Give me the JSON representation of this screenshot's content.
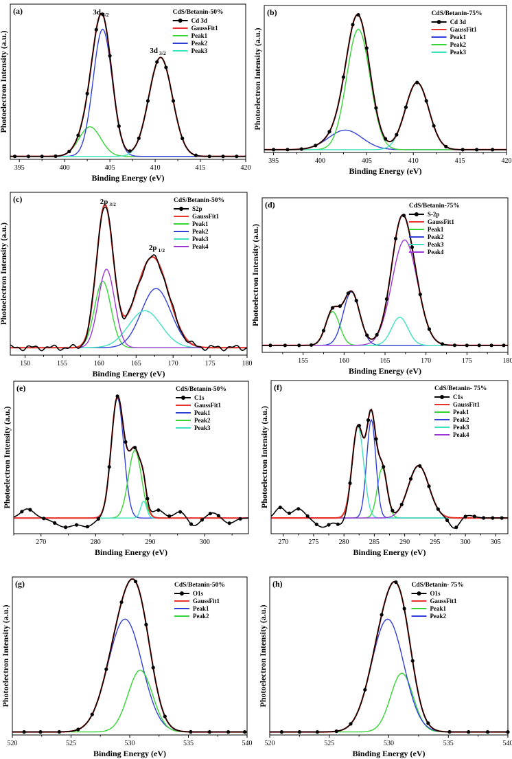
{
  "colors": {
    "data": "#000000",
    "fit": "#e8322b",
    "green": "#33d433",
    "blue": "#2f3fd6",
    "cyan": "#3fe0c0",
    "purple": "#9c35d6"
  },
  "chart_data": [
    {
      "type": "line",
      "panel": "(a)",
      "xlabel": "Binding Energy (eV)",
      "ylabel": "Photoelectron Intensity (a.u.)",
      "xlim": [
        394,
        420
      ],
      "ylim": [
        0,
        1.05
      ],
      "xticks": [
        395,
        400,
        405,
        410,
        415,
        420
      ],
      "legend_title": "CdS/Betanin-50%",
      "legend_position": "top-right",
      "legend_order": [
        "measured",
        "fit",
        "p1",
        "p2",
        "p3"
      ],
      "measured_name": "Cd 3d",
      "fit_name": "GaussFit1",
      "baseline": 0.02,
      "peaks": [
        {
          "key": "p1",
          "name": "Peak1",
          "color": "green",
          "center": 402.8,
          "amp": 0.2,
          "sigma": 1.2
        },
        {
          "key": "p2",
          "name": "Peak2",
          "color": "blue",
          "center": 404.2,
          "amp": 0.86,
          "sigma": 1.05
        },
        {
          "key": "p3",
          "name": "Peak3",
          "color": "cyan",
          "center": 410.6,
          "amp": 0.67,
          "sigma": 1.3
        }
      ],
      "markers": [
        394.5,
        396,
        397.5,
        399,
        400.5,
        401.5,
        402.5,
        403.5,
        404.2,
        405,
        406,
        407.2,
        408.2,
        409.2,
        410.2,
        411.2,
        412,
        413,
        414.5,
        416,
        417.5,
        419
      ],
      "annotations": [
        {
          "main": "3d",
          "sub": "5/2",
          "x": 404.0,
          "y": 0.98
        },
        {
          "main": "3d",
          "sub": "3/2",
          "x": 410.3,
          "y": 0.72
        }
      ]
    },
    {
      "type": "line",
      "panel": "(b)",
      "xlabel": "Binding Energy (eV)",
      "ylabel": "Photoelectron Intensity (a.u.)",
      "xlim": [
        394,
        420
      ],
      "ylim": [
        0,
        1.05
      ],
      "xticks": [
        395,
        400,
        405,
        410,
        415,
        420
      ],
      "legend_title": "CdS/Betanin-75%",
      "legend_position": "top-right",
      "legend_order": [
        "measured",
        "fit",
        "p1",
        "p2",
        "p3"
      ],
      "measured_name": "Cd 3d",
      "fit_name": "GaussFit1",
      "baseline": 0.02,
      "peaks": [
        {
          "key": "p1",
          "name": "Peak1",
          "color": "blue",
          "center": 402.7,
          "amp": 0.14,
          "sigma": 1.8
        },
        {
          "key": "p2",
          "name": "Peak2",
          "color": "green",
          "center": 404.1,
          "amp": 0.86,
          "sigma": 1.25
        },
        {
          "key": "p3",
          "name": "Peak3",
          "color": "cyan",
          "center": 410.4,
          "amp": 0.48,
          "sigma": 1.25
        }
      ],
      "markers": [
        395,
        396.5,
        398,
        399.5,
        401,
        402.5,
        403.5,
        404.1,
        405,
        406,
        407,
        408.2,
        409.2,
        410.4,
        411.4,
        412.2,
        413.5,
        415.3,
        416.8,
        418.5
      ],
      "annotations": []
    },
    {
      "type": "line",
      "panel": "(c)",
      "xlabel": "Binding Energy (eV)",
      "ylabel": "Photoelectron Intensity (a.u.)",
      "xlim": [
        148,
        180
      ],
      "ylim": [
        -0.05,
        1.05
      ],
      "xticks": [
        150,
        155,
        160,
        165,
        170,
        175,
        180
      ],
      "legend_title": "CdS/Betanin-50%",
      "legend_position": "top-right",
      "legend_order": [
        "measured",
        "fit",
        "p1",
        "p2",
        "p3",
        "p4"
      ],
      "measured_name": "S2p",
      "fit_name": "GaussFit1",
      "baseline": 0.0,
      "peaks": [
        {
          "key": "p1",
          "name": "Peak1",
          "color": "green",
          "center": 160.5,
          "amp": 0.45,
          "sigma": 1.1
        },
        {
          "key": "p2",
          "name": "Peak2",
          "color": "blue",
          "center": 167.7,
          "amp": 0.4,
          "sigma": 2.0
        },
        {
          "key": "p3",
          "name": "Peak3",
          "color": "cyan",
          "center": 166.2,
          "amp": 0.25,
          "sigma": 2.2
        },
        {
          "key": "p4",
          "name": "Peak4",
          "color": "purple",
          "center": 161.0,
          "amp": 0.53,
          "sigma": 1.1
        }
      ],
      "markers": [],
      "noise": 0.013,
      "annotations": [
        {
          "main": "2p",
          "sub": "3/2",
          "x": 161.2,
          "y": 0.97
        },
        {
          "main": "2p",
          "sub": "1/2",
          "x": 167.8,
          "y": 0.66
        }
      ]
    },
    {
      "type": "line",
      "panel": "(d)",
      "xlabel": "Binding Energy (eV)",
      "ylabel": "Photoelectron Intensity (a.u.)",
      "xlim": [
        150,
        180
      ],
      "ylim": [
        -0.05,
        1.05
      ],
      "xticks": [
        155,
        160,
        165,
        170,
        175,
        180
      ],
      "legend_title": "CdS/Betanin-75%",
      "legend_position": "top-left",
      "legend_order": [
        "measured",
        "fit",
        "p1",
        "p2",
        "p3",
        "p4"
      ],
      "measured_name": "S-2p",
      "fit_name": "GaussFit1",
      "baseline": 0.0,
      "peaks": [
        {
          "key": "p1",
          "name": "Peak1",
          "color": "green",
          "center": 158.6,
          "amp": 0.24,
          "sigma": 0.85
        },
        {
          "key": "p2",
          "name": "Peak2",
          "color": "blue",
          "center": 160.9,
          "amp": 0.38,
          "sigma": 1.0
        },
        {
          "key": "p3",
          "name": "Peak3",
          "color": "cyan",
          "center": 166.8,
          "amp": 0.2,
          "sigma": 1.0
        },
        {
          "key": "p4",
          "name": "Peak4",
          "color": "purple",
          "center": 167.4,
          "amp": 0.75,
          "sigma": 1.55
        }
      ],
      "markers": [
        151,
        152.8,
        154.5,
        156,
        157.5,
        158.6,
        159.5,
        160.5,
        161.5,
        162.8,
        164,
        165.2,
        166.3,
        167.3,
        168.3,
        169.3,
        170.4,
        172,
        173.5,
        175,
        176.5,
        178,
        179.5
      ],
      "annotations": []
    },
    {
      "type": "line",
      "panel": "(e)",
      "xlabel": "Binding Energy (eV)",
      "ylabel": "Photoelectron Intensity (a.u.)",
      "xlim": [
        265,
        308
      ],
      "ylim": [
        -0.12,
        1.05
      ],
      "xticks": [
        270,
        280,
        290,
        300
      ],
      "legend_title": "CdS/Betanin-50%",
      "legend_position": "top-right",
      "legend_order": [
        "measured",
        "fit",
        "p1",
        "p2",
        "p3"
      ],
      "measured_name": "C1s",
      "fit_name": "GaussFit1",
      "baseline": 0.0,
      "peaks": [
        {
          "key": "p1",
          "name": "Peak1",
          "color": "blue",
          "center": 284.0,
          "amp": 0.92,
          "sigma": 1.15
        },
        {
          "key": "p2",
          "name": "Peak2",
          "color": "green",
          "center": 287.2,
          "amp": 0.52,
          "sigma": 1.2
        },
        {
          "key": "p3",
          "name": "Peak3",
          "color": "cyan",
          "center": 288.8,
          "amp": 0.13,
          "sigma": 0.55
        }
      ],
      "markers": [
        266.5,
        268,
        270.5,
        272.5,
        274.5,
        276.5,
        278.5,
        280.5,
        282.5,
        284,
        285.5,
        287.2,
        289.5,
        291.5,
        293.5,
        295.5,
        297.5,
        299.5,
        301,
        302.5,
        304.5,
        306.5
      ],
      "bumps": [
        {
          "center": 267.5,
          "amp": 0.07,
          "sigma": 1.2
        },
        {
          "center": 274.5,
          "amp": -0.07,
          "sigma": 1.8
        },
        {
          "center": 278.5,
          "amp": -0.06,
          "sigma": 1.2
        },
        {
          "center": 291.5,
          "amp": 0.06,
          "sigma": 1.0
        },
        {
          "center": 295.5,
          "amp": 0.05,
          "sigma": 1.0
        },
        {
          "center": 298,
          "amp": -0.06,
          "sigma": 1.0
        },
        {
          "center": 301.5,
          "amp": 0.04,
          "sigma": 1.0
        },
        {
          "center": 304.5,
          "amp": -0.04,
          "sigma": 1.0
        }
      ],
      "annotations": []
    },
    {
      "type": "line",
      "panel": "(f)",
      "xlabel": "Binding Energy (eV)",
      "ylabel": "Photoelectron Intensity (a.u.)",
      "xlim": [
        268,
        307
      ],
      "ylim": [
        -0.12,
        1.05
      ],
      "xticks": [
        270,
        275,
        280,
        285,
        290,
        295,
        300,
        305
      ],
      "legend_title": "CdS/Betanin- 75%",
      "legend_position": "top-right",
      "legend_order": [
        "measured",
        "fit",
        "p1",
        "p2",
        "p3",
        "p4"
      ],
      "measured_name": "C1s",
      "fit_name": "GaussFit1",
      "baseline": 0.0,
      "peaks": [
        {
          "key": "p1",
          "name": "Peak1",
          "color": "green",
          "center": 286.3,
          "amp": 0.38,
          "sigma": 0.8
        },
        {
          "key": "p2",
          "name": "Peak2",
          "color": "blue",
          "center": 284.5,
          "amp": 0.75,
          "sigma": 0.75
        },
        {
          "key": "p3",
          "name": "Peak3",
          "color": "cyan",
          "center": 282.3,
          "amp": 0.7,
          "sigma": 0.95
        },
        {
          "key": "p4",
          "name": "Peak4",
          "color": "purple",
          "center": 292.3,
          "amp": 0.4,
          "sigma": 1.7
        }
      ],
      "markers": [
        269.5,
        271,
        272.5,
        274,
        275.5,
        277.5,
        279,
        281,
        282.5,
        284,
        285.3,
        286.5,
        288,
        289.5,
        291,
        292.5,
        294,
        295.5,
        297,
        298.5,
        300,
        301.5,
        303,
        304.5,
        306
      ],
      "bumps": [
        {
          "center": 269.5,
          "amp": 0.08,
          "sigma": 0.8
        },
        {
          "center": 272.5,
          "amp": 0.07,
          "sigma": 1.0
        },
        {
          "center": 276.5,
          "amp": -0.07,
          "sigma": 1.2
        },
        {
          "center": 279.5,
          "amp": -0.05,
          "sigma": 0.8
        },
        {
          "center": 298.2,
          "amp": -0.08,
          "sigma": 0.8
        },
        {
          "center": 300.5,
          "amp": 0.02,
          "sigma": 1.0
        }
      ],
      "annotations": []
    },
    {
      "type": "line",
      "panel": "(g)",
      "xlabel": "Binding Energy (eV)",
      "ylabel": "Photoelectron Intensity (a.u.)",
      "xlim": [
        520,
        540
      ],
      "ylim": [
        0,
        1.05
      ],
      "xticks": [
        520,
        525,
        530,
        535,
        540
      ],
      "legend_title": "CdS/Betanin-50%",
      "legend_position": "top-right",
      "legend_order": [
        "measured",
        "fit",
        "p1",
        "p2"
      ],
      "measured_name": "O1s",
      "fit_name": "GaussFit1",
      "baseline": 0.02,
      "peaks": [
        {
          "key": "p1",
          "name": "Peak1",
          "color": "blue",
          "center": 529.6,
          "amp": 0.75,
          "sigma": 1.45
        },
        {
          "key": "p2",
          "name": "Peak2",
          "color": "green",
          "center": 530.9,
          "amp": 0.41,
          "sigma": 1.05
        }
      ],
      "markers": [
        521,
        522.4,
        524,
        525.6,
        526.8,
        528,
        529.3,
        530.5,
        531.4,
        532,
        533,
        535.2,
        536.8,
        538.4,
        539.8
      ],
      "annotations": []
    },
    {
      "type": "line",
      "panel": "(h)",
      "xlabel": "Binding Energy (eV)",
      "ylabel": "Photoelectron Intensity (a.u.)",
      "xlim": [
        520,
        540
      ],
      "ylim": [
        0,
        1.05
      ],
      "xticks": [
        520,
        525,
        530,
        535,
        540
      ],
      "legend_title": "CdS/Betanin- 75%",
      "legend_position": "top-left",
      "legend_order": [
        "measured",
        "fit",
        "p1",
        "p2"
      ],
      "measured_name": "O1s",
      "fit_name": "GaussFit1",
      "baseline": 0.02,
      "peaks": [
        {
          "key": "p1",
          "name": "Peak1",
          "color": "green",
          "center": 531.1,
          "amp": 0.39,
          "sigma": 0.95
        },
        {
          "key": "p2",
          "name": "Peak2",
          "color": "blue",
          "center": 529.9,
          "amp": 0.75,
          "sigma": 1.35
        }
      ],
      "markers": [
        521,
        522.5,
        524,
        525.6,
        526.8,
        528,
        529.4,
        530.6,
        531.3,
        532,
        533.3,
        535.1,
        536.7,
        538.3,
        540
      ],
      "annotations": []
    }
  ]
}
